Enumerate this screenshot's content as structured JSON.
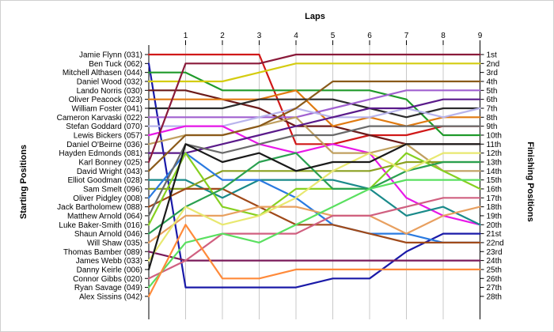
{
  "chart_data": {
    "type": "line",
    "subtype": "bump",
    "title": "",
    "xlabel": "Laps",
    "ylabel_left": "Starting Positions",
    "ylabel_right": "Finishing Positions",
    "x": [
      0,
      1,
      2,
      3,
      4,
      5,
      6,
      7,
      8,
      9
    ],
    "x_tick_labels": [
      "1",
      "2",
      "3",
      "4",
      "5",
      "6",
      "7",
      "8",
      "9"
    ],
    "ylim": [
      1,
      28
    ],
    "grid": true,
    "finishing_labels": [
      "1st",
      "2nd",
      "3rd",
      "4th",
      "5th",
      "6th",
      "7th",
      "8th",
      "9th",
      "10th",
      "11th",
      "12th",
      "13th",
      "14th",
      "15th",
      "16th",
      "17th",
      "18th",
      "19th",
      "20th",
      "21st",
      "22nd",
      "23rd",
      "24th",
      "25th",
      "26th",
      "27th",
      "28th"
    ],
    "series": [
      {
        "name": "Jamie Flynn (031)",
        "color": "#d01818",
        "values": [
          1,
          1,
          1,
          1,
          11,
          11,
          10,
          10,
          9,
          9
        ]
      },
      {
        "name": "Ben Tuck (062)",
        "color": "#1a1aa8",
        "values": [
          2,
          27,
          27,
          27,
          27,
          26,
          26,
          23,
          21,
          21
        ]
      },
      {
        "name": "Mitchell Althasen (044)",
        "color": "#1f9a2a",
        "values": [
          3,
          3,
          5,
          5,
          5,
          5,
          5,
          6,
          10,
          10
        ]
      },
      {
        "name": "Daniel Wood (032)",
        "color": "#d4cc10",
        "values": [
          4,
          4,
          4,
          3,
          2,
          2,
          2,
          2,
          2,
          2
        ]
      },
      {
        "name": "Lando Norris (030)",
        "color": "#6b1a1a",
        "values": [
          5,
          5,
          6,
          7,
          9,
          9,
          10,
          11,
          11,
          11
        ]
      },
      {
        "name": "Oliver Peacock (023)",
        "color": "#e07a10",
        "values": [
          6,
          6,
          6,
          6,
          5,
          9,
          8,
          9,
          8,
          8
        ]
      },
      {
        "name": "William Foster (041)",
        "color": "#2c2c2c",
        "values": [
          7,
          7,
          7,
          6,
          6,
          6,
          7,
          8,
          7,
          7
        ]
      },
      {
        "name": "Cameron Karvaski (022)",
        "color": "#a060d0",
        "values": [
          8,
          8,
          8,
          8,
          8,
          7,
          6,
          5,
          5,
          5
        ]
      },
      {
        "name": "Stefan Goddard (070)",
        "color": "#b8b4ec",
        "values": [
          9,
          9,
          9,
          8,
          7,
          8,
          8,
          7,
          8,
          7
        ]
      },
      {
        "name": "Lewis Bickers (057)",
        "color": "#e818e8",
        "values": [
          10,
          9,
          9,
          11,
          12,
          11,
          12,
          17,
          19,
          20
        ]
      },
      {
        "name": "Daniel O'Beirne (036)",
        "color": "#c0a060",
        "values": [
          11,
          10,
          10,
          9,
          8,
          12,
          12,
          11,
          14,
          14
        ]
      },
      {
        "name": "Hayden Edmonds (081)",
        "color": "#5a1a8a",
        "values": [
          12,
          12,
          11,
          10,
          9,
          8,
          7,
          7,
          6,
          6
        ]
      },
      {
        "name": "Karl Bonney (025)",
        "color": "#8a1a3a",
        "values": [
          13,
          2,
          2,
          2,
          1,
          1,
          1,
          1,
          1,
          1
        ]
      },
      {
        "name": "David Wright (043)",
        "color": "#8a5a1a",
        "values": [
          14,
          10,
          10,
          9,
          7,
          4,
          4,
          4,
          4,
          4
        ]
      },
      {
        "name": "Elliot Goodman (028)",
        "color": "#1a8a8a",
        "values": [
          15,
          15,
          17,
          15,
          15,
          15,
          16,
          19,
          18,
          20
        ]
      },
      {
        "name": "Sam Smelt (096)",
        "color": "#8aa020",
        "values": [
          16,
          16,
          14,
          14,
          14,
          14,
          14,
          13,
          13,
          13
        ]
      },
      {
        "name": "Oliver Pidgley (008)",
        "color": "#2a7ae0",
        "values": [
          17,
          12,
          15,
          15,
          17,
          20,
          21,
          21,
          22,
          22
        ]
      },
      {
        "name": "Jack Bartholomew (088)",
        "color": "#a04a1a",
        "values": [
          18,
          16,
          16,
          18,
          20,
          20,
          21,
          22,
          22,
          22
        ]
      },
      {
        "name": "Matthew Arnold (064)",
        "color": "#6a6a6a",
        "values": [
          19,
          11,
          12,
          11,
          10,
          10,
          9,
          9,
          9,
          9
        ]
      },
      {
        "name": "Luke Baker-Smith (016)",
        "color": "#86d020",
        "values": [
          20,
          12,
          18,
          19,
          16,
          16,
          16,
          12,
          14,
          16
        ]
      },
      {
        "name": "Shaun Arnold (046)",
        "color": "#2aa050",
        "values": [
          21,
          18,
          16,
          13,
          12,
          16,
          16,
          14,
          13,
          13
        ]
      },
      {
        "name": "Will Shaw (035)",
        "color": "#e8a060",
        "values": [
          22,
          19,
          19,
          18,
          18,
          19,
          19,
          21,
          19,
          18
        ]
      },
      {
        "name": "Thomas Bamber (089)",
        "color": "#7a1a5a",
        "values": [
          23,
          24,
          24,
          24,
          24,
          24,
          24,
          24,
          24,
          24
        ]
      },
      {
        "name": "James Webb (033)",
        "color": "#e8e870",
        "values": [
          24,
          18,
          20,
          19,
          17,
          14,
          12,
          14,
          12,
          12
        ]
      },
      {
        "name": "Danny Keirle (006)",
        "color": "#1a1a1a",
        "values": [
          25,
          11,
          13,
          12,
          14,
          13,
          13,
          11,
          11,
          11
        ]
      },
      {
        "name": "Connor Gibbs (020)",
        "color": "#d06080",
        "values": [
          26,
          24,
          21,
          21,
          21,
          19,
          19,
          18,
          17,
          17
        ]
      },
      {
        "name": "Ryan Savage (049)",
        "color": "#5ae060",
        "values": [
          27,
          22,
          21,
          22,
          20,
          18,
          16,
          15,
          15,
          15
        ]
      },
      {
        "name": "Alex Sissins (042)",
        "color": "#ff8a3a",
        "values": [
          28,
          20,
          26,
          26,
          25,
          25,
          25,
          25,
          25,
          25
        ]
      }
    ]
  }
}
